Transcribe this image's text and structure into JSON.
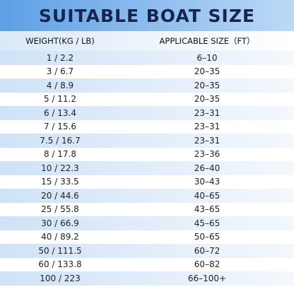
{
  "header": {
    "title": "SUITABLE BOAT SIZE"
  },
  "table": {
    "columns": [
      "WEIGHT(KG / LB)",
      "APPLICABLE SIZE（FT）"
    ],
    "rows": [
      [
        "1 / 2.2",
        "6–10"
      ],
      [
        "3 / 6.7",
        "20–35"
      ],
      [
        "4 / 8.9",
        "20–35"
      ],
      [
        "5 / 11.2",
        "20–35"
      ],
      [
        "6 / 13.4",
        "23–31"
      ],
      [
        "7 / 15.6",
        "23–31"
      ],
      [
        "7.5 / 16.7",
        "23–31"
      ],
      [
        "8 / 17.8",
        "23–36"
      ],
      [
        "10 / 22.3",
        "26–40"
      ],
      [
        "15 / 33.5",
        "30–43"
      ],
      [
        "20 / 44.6",
        "40–65"
      ],
      [
        "25 / 55.8",
        "43–65"
      ],
      [
        "30 / 66.9",
        "45–65"
      ],
      [
        "40 / 89.2",
        "50–65"
      ],
      [
        "50 / 111.5",
        "60–72"
      ],
      [
        "60 / 133.8",
        "60–82"
      ],
      [
        "100 / 223",
        "66–100+"
      ]
    ]
  }
}
